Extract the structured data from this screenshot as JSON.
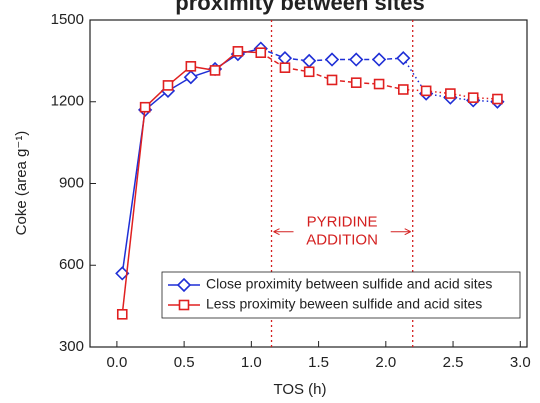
{
  "chart_data": {
    "type": "line",
    "title": "proximity between sites",
    "x_label": "TOS (h)",
    "y_label": "Coke (area g⁻¹)",
    "xlim": [
      -0.2,
      3.05
    ],
    "ylim": [
      300,
      1500
    ],
    "xticks": [
      {
        "value": 0,
        "label": "0.0"
      },
      0.5,
      {
        "value": 1,
        "label": "1.0"
      },
      1.5,
      {
        "value": 2,
        "label": "2.0"
      },
      2.5,
      {
        "value": 3,
        "label": "3.0"
      }
    ],
    "yticks": [
      300,
      600,
      900,
      1200,
      1500
    ],
    "vlines": [
      1.15,
      2.2
    ],
    "annotation": [
      "PYRIDINE",
      "ADDITION"
    ],
    "annotation_color": "#d42020",
    "legend": "lower right",
    "x": [
      0.04,
      0.21,
      0.38,
      0.55,
      0.73,
      0.9,
      1.07,
      1.25,
      1.43,
      1.6,
      1.78,
      1.95,
      2.13,
      2.3,
      2.48,
      2.65,
      2.83
    ],
    "series": [
      {
        "name": "Close proximity between sulfide and acid sites",
        "color": "#1f2fd6",
        "marker": "diamond",
        "values": [
          570,
          1170,
          1240,
          1290,
          1320,
          1375,
          1395,
          1360,
          1350,
          1355,
          1355,
          1355,
          1360,
          1230,
          1215,
          1205,
          1200
        ]
      },
      {
        "name": "Less proximity beween sulfide and acid sites",
        "color": "#e02020",
        "marker": "square",
        "values": [
          420,
          1180,
          1260,
          1330,
          1315,
          1385,
          1380,
          1325,
          1310,
          1280,
          1270,
          1265,
          1245,
          1240,
          1230,
          1215,
          1210
        ]
      }
    ]
  }
}
